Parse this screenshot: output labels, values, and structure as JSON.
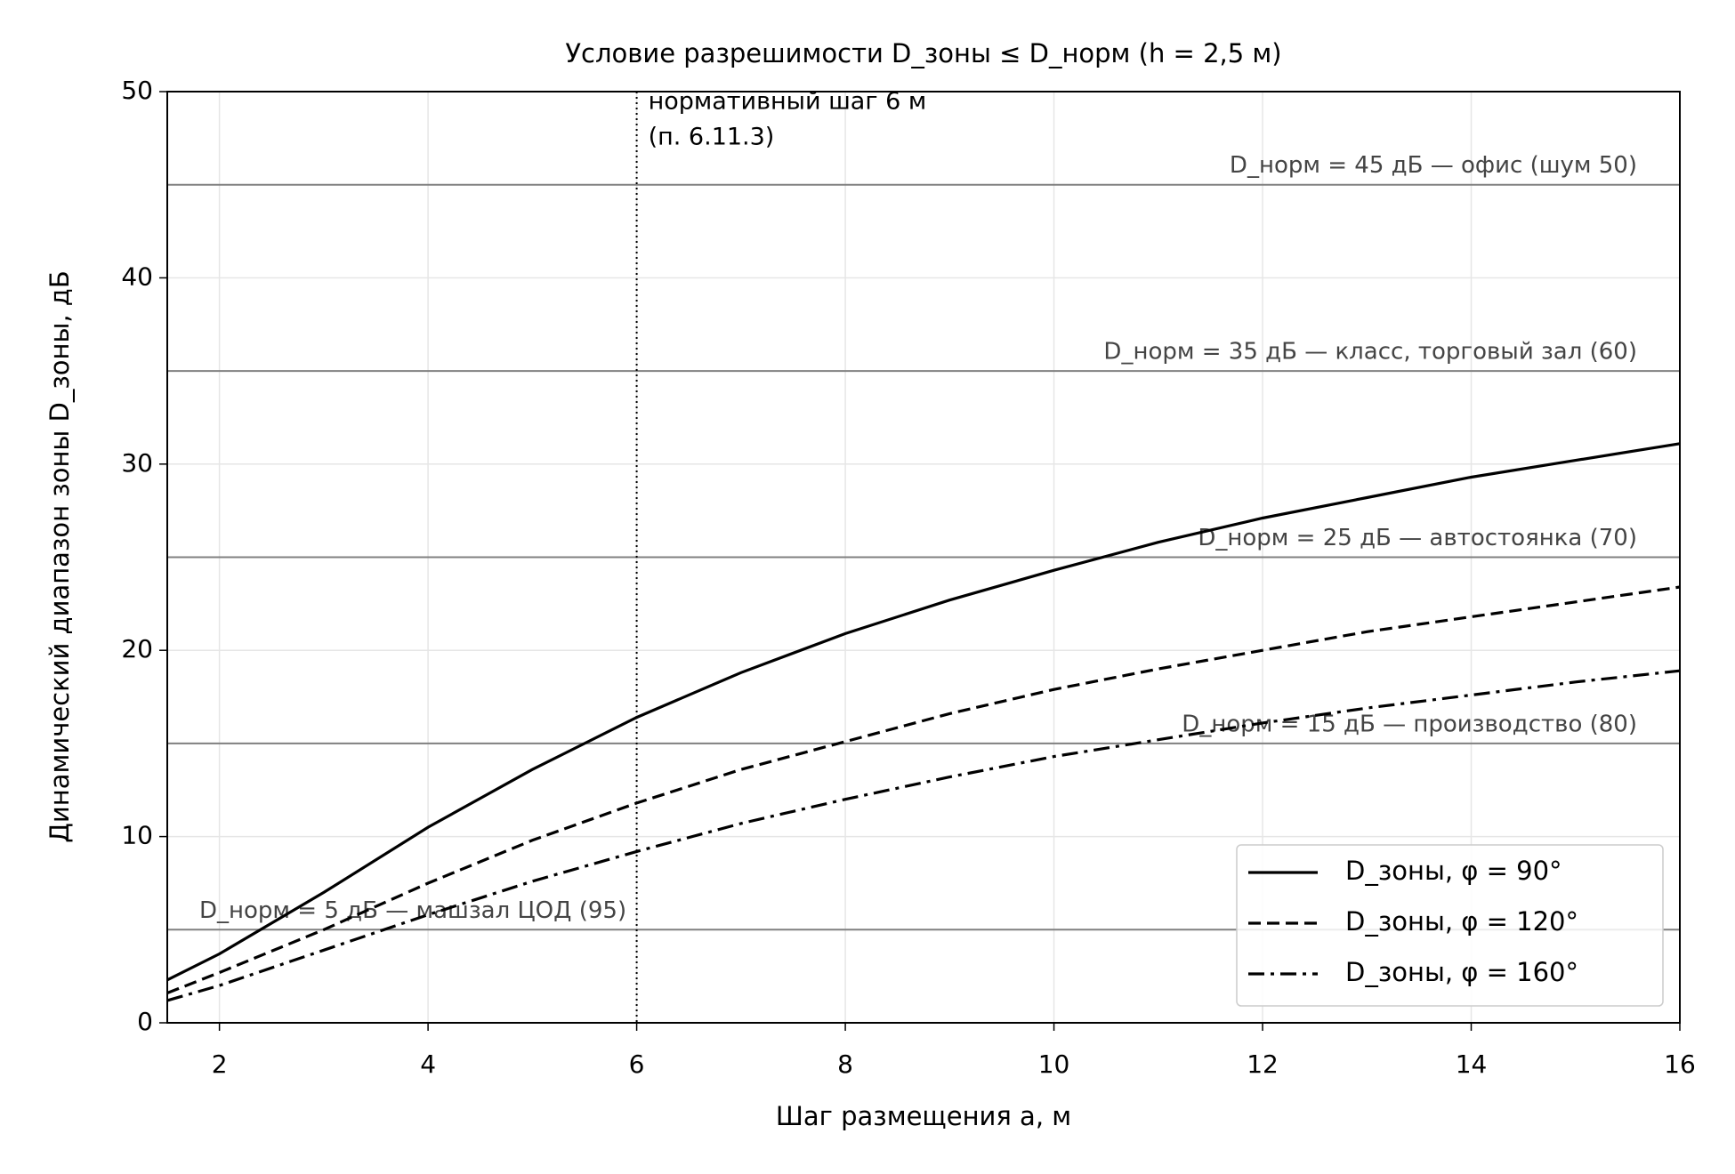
{
  "chart_data": {
    "type": "line",
    "title": "Условие разрешимости D_зоны ≤ D_норм  (h = 2,5 м)",
    "x_label": "Шаг размещения a, м",
    "y_label": "Динамический диапазон зоны D_зоны, дБ",
    "x": [
      1.5,
      2,
      3,
      4,
      5,
      6,
      7,
      8,
      9,
      10,
      11,
      12,
      13,
      14,
      15,
      16
    ],
    "series": [
      {
        "name": "D_зоны, φ = 90°",
        "color": "#000000",
        "dash": "solid",
        "values": [
          2.3,
          3.7,
          7.0,
          10.5,
          13.6,
          16.4,
          18.8,
          20.9,
          22.7,
          24.3,
          25.8,
          27.1,
          28.2,
          29.3,
          30.2,
          31.1
        ]
      },
      {
        "name": "D_зоны, φ = 120°",
        "color": "#000000",
        "dash": "dashed",
        "values": [
          1.6,
          2.7,
          5.0,
          7.5,
          9.8,
          11.8,
          13.6,
          15.1,
          16.6,
          17.9,
          19.0,
          20.0,
          21.0,
          21.8,
          22.6,
          23.4
        ]
      },
      {
        "name": "D_зоны, φ = 160°",
        "color": "#000000",
        "dash": "dashdot",
        "values": [
          1.2,
          2.0,
          3.9,
          5.8,
          7.6,
          9.2,
          10.7,
          12.0,
          13.2,
          14.3,
          15.2,
          16.1,
          16.9,
          17.6,
          18.3,
          18.9
        ]
      }
    ],
    "hlines": [
      {
        "value": 45,
        "label": "D_норм = 45 дБ — офис (шум 50)"
      },
      {
        "value": 35,
        "label": "D_норм = 35 дБ — класс, торговый зал (60)"
      },
      {
        "value": 25,
        "label": "D_норм = 25 дБ — автостоянка (70)"
      },
      {
        "value": 15,
        "label": "D_норм = 15 дБ — производство (80)"
      },
      {
        "value": 5,
        "label": "D_норм = 5 дБ — машзал ЦОД (95)"
      }
    ],
    "hline_color": "#808080",
    "vline": {
      "value": 6,
      "label": [
        "нормативный шаг 6 м",
        "(п. 6.11.3)"
      ]
    },
    "xlim": [
      1.5,
      16
    ],
    "ylim": [
      0,
      50
    ],
    "xticks": [
      2,
      4,
      6,
      8,
      10,
      12,
      14,
      16
    ],
    "yticks": [
      0,
      10,
      20,
      30,
      40,
      50
    ],
    "grid": true,
    "legend": "lower right"
  }
}
